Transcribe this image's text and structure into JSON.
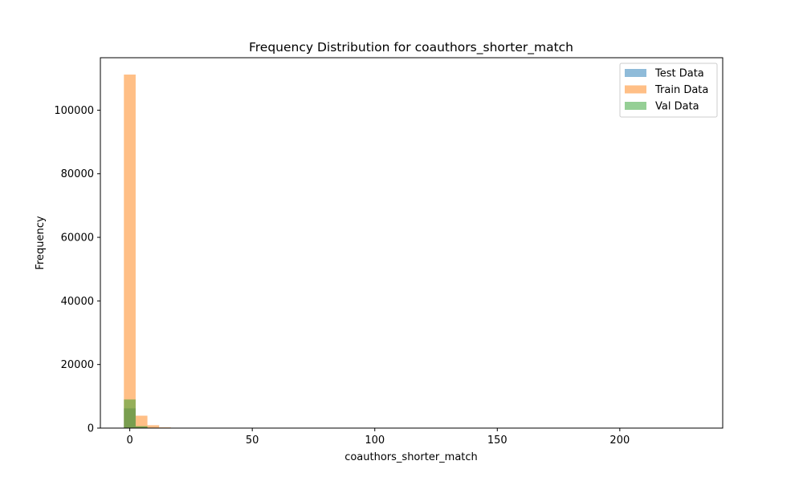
{
  "chart_data": {
    "type": "bar",
    "title": "Frequency Distribution for coauthors_shorter_match",
    "xlabel": "coauthors_shorter_match",
    "ylabel": "Frequency",
    "xlim": [
      -12,
      242
    ],
    "ylim": [
      0,
      116500
    ],
    "xticks": [
      0,
      50,
      100,
      150,
      200
    ],
    "yticks": [
      0,
      20000,
      40000,
      60000,
      80000,
      100000
    ],
    "bin_width": 4.8,
    "bin_start": -2.4,
    "grid": false,
    "legend_position": "top-right",
    "series": [
      {
        "name": "Test Data",
        "color": "#1f77b4",
        "values": [
          6200,
          420,
          80,
          10,
          2
        ]
      },
      {
        "name": "Train Data",
        "color": "#ff7f0e",
        "values": [
          111200,
          3900,
          900,
          220,
          70,
          25,
          10,
          5
        ]
      },
      {
        "name": "Val Data",
        "color": "#2ca02c",
        "values": [
          9000,
          600,
          120,
          15,
          3
        ]
      }
    ]
  }
}
